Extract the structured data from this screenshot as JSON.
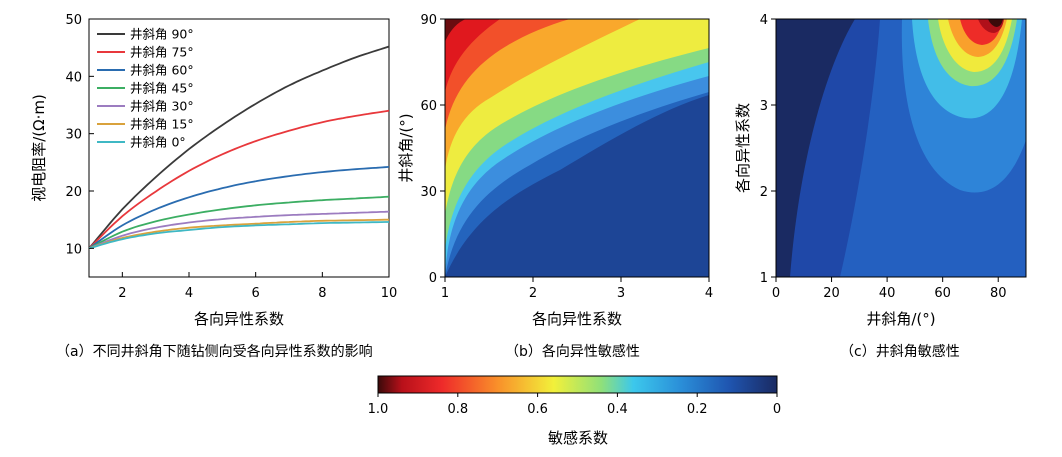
{
  "chart_data": [
    {
      "type": "line",
      "caption": "（a）不同井斜角下随钻侧向受各向异性系数的影响",
      "xlabel": "各向异性系数",
      "ylabel": "视电阻率/(Ω·m)",
      "xlim": [
        1,
        10
      ],
      "ylim": [
        5,
        50
      ],
      "xticks": [
        "2",
        "4",
        "6",
        "8",
        "10"
      ],
      "yticks": [
        "10",
        "20",
        "30",
        "40",
        "50"
      ],
      "legend_position": "top-left",
      "x": [
        1,
        2,
        3,
        4,
        5,
        6,
        7,
        8,
        9,
        10
      ],
      "series": [
        {
          "name": "井斜角 90°",
          "color": "#3a3a3a",
          "values": [
            10.0,
            16.8,
            22.4,
            27.3,
            31.5,
            35.2,
            38.4,
            41.0,
            43.3,
            45.2
          ]
        },
        {
          "name": "井斜角 75°",
          "color": "#e8383c",
          "values": [
            10.0,
            15.6,
            19.9,
            23.5,
            26.4,
            28.7,
            30.5,
            32.0,
            33.1,
            34.0
          ]
        },
        {
          "name": "井斜角 60°",
          "color": "#2a6cb0",
          "values": [
            10.0,
            14.0,
            16.8,
            18.9,
            20.5,
            21.7,
            22.6,
            23.3,
            23.8,
            24.2
          ]
        },
        {
          "name": "井斜角 45°",
          "color": "#3cae63",
          "values": [
            10.0,
            12.9,
            14.7,
            15.9,
            16.8,
            17.5,
            18.0,
            18.4,
            18.7,
            19.0
          ]
        },
        {
          "name": "井斜角 30°",
          "color": "#9c7cc0",
          "values": [
            10.0,
            12.2,
            13.6,
            14.5,
            15.1,
            15.5,
            15.8,
            16.0,
            16.2,
            16.4
          ]
        },
        {
          "name": "井斜角 15°",
          "color": "#d9a23c",
          "values": [
            10.0,
            11.8,
            12.9,
            13.6,
            14.0,
            14.3,
            14.6,
            14.8,
            14.9,
            15.0
          ]
        },
        {
          "name": "井斜角 0°",
          "color": "#3fb8c4",
          "values": [
            10.0,
            11.6,
            12.6,
            13.2,
            13.7,
            14.0,
            14.2,
            14.4,
            14.5,
            14.6
          ]
        }
      ]
    },
    {
      "type": "heatmap",
      "caption": "（b）各向异性敏感性",
      "xlabel": "各向异性系数",
      "ylabel": "井斜角/(°)",
      "xlim": [
        1,
        4
      ],
      "ylim": [
        0,
        90
      ],
      "xticks": [
        "1",
        "2",
        "3",
        "4"
      ],
      "yticks": [
        "0",
        "30",
        "60",
        "90"
      ]
    },
    {
      "type": "heatmap",
      "caption": "（c）井斜角敏感性",
      "xlabel": "井斜角/(°)",
      "ylabel": "各向异性系数",
      "xlim": [
        0,
        90
      ],
      "ylim": [
        1,
        4
      ],
      "xticks": [
        "0",
        "20",
        "40",
        "60",
        "80"
      ],
      "yticks": [
        "1",
        "2",
        "3",
        "4"
      ]
    },
    {
      "type": "colorbar",
      "label": "敏感系数",
      "ticks": [
        "1.0",
        "0.8",
        "0.6",
        "0.4",
        "0.2",
        "0"
      ],
      "range": [
        1.0,
        0
      ]
    }
  ]
}
